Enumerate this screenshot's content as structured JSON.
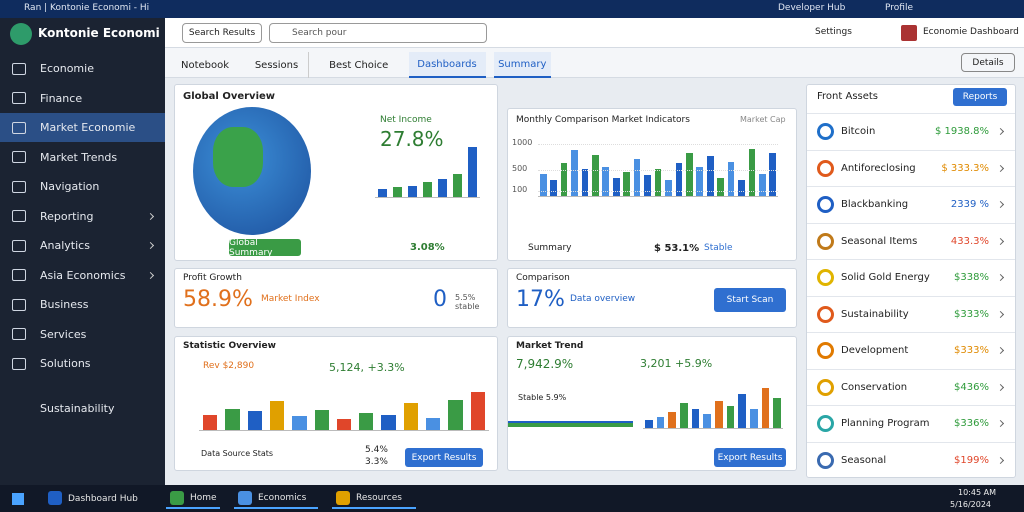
{
  "browser": {
    "tab_title": "Ran | Kontonie Economi - Hi",
    "account": "Developer Hub",
    "profile": "Profile"
  },
  "header": {
    "app_name": "Kontonie Economi",
    "search_button": "Search Results",
    "search_placeholder": "Search pour",
    "shortcut": "Settings",
    "user_name": "Economie Dashboard"
  },
  "sidebar": {
    "items": [
      "Economie",
      "Finance",
      "Market Economie",
      "Market Trends",
      "Navigation",
      "Reporting",
      "Analytics",
      "Asia Economics",
      "Business",
      "Services",
      "Solutions"
    ],
    "active": 2,
    "expandable": [
      5,
      6,
      7
    ],
    "footer": "Sustainability"
  },
  "tabs": {
    "items": [
      "Notebook",
      "Sessions",
      "Best Choice",
      "Dashboards",
      "Summary"
    ],
    "active": [
      3,
      4
    ],
    "details": "Details"
  },
  "globe_panel": {
    "title": "Global Overview",
    "metric_label": "Net Income",
    "metric": "27.8%",
    "ylim": [
      0,
      70
    ],
    "bars": [
      10,
      12,
      14,
      18,
      22,
      28,
      62
    ],
    "button": "Global Summary",
    "footer_value": "3.08%"
  },
  "monthly_panel": {
    "title": "Monthly Comparison Market Indicators",
    "tag": "Market Cap",
    "ylim": [
      0,
      1200
    ],
    "yticks": [
      100,
      500,
      1000
    ],
    "bars": [
      420,
      300,
      620,
      880,
      520,
      780,
      560,
      340,
      460,
      700,
      400,
      520,
      300,
      620,
      820,
      560,
      760,
      340,
      640,
      300,
      900,
      420,
      820
    ],
    "summary": "Summary",
    "summary_value": "$ 53.1%",
    "summary_status": "Stable"
  },
  "profit_panel": {
    "title": "Profit Growth",
    "metric": "58.9%",
    "metric_label": "Market Index",
    "count": "0",
    "count_note": "5.5% stable"
  },
  "comparison_panel": {
    "title": "Comparison",
    "metric": "17%",
    "metric_label": "Data overview",
    "button": "Start Scan"
  },
  "stats_panel": {
    "title": "Statistic Overview",
    "legend": "Rev $2,890",
    "headline": "5,124, +3.3%",
    "ylim": [
      0,
      100
    ],
    "bars": [
      30,
      42,
      38,
      60,
      28,
      40,
      22,
      35,
      30,
      55,
      25,
      62,
      78
    ],
    "footer": "Data Source Stats",
    "values": [
      "5.4%",
      "3.3%"
    ],
    "button": "Export Results"
  },
  "trend_panel": {
    "title": "Market Trend",
    "metric": "7,942.9%",
    "headline": "3,201 +5.9%",
    "legend": "Stable 5.9%",
    "ylim": [
      0,
      100
    ],
    "bars": [
      15,
      20,
      30,
      45,
      35,
      25,
      50,
      40,
      62,
      35,
      72,
      55
    ],
    "button": "Export Results"
  },
  "assets_panel": {
    "title": "Front Assets",
    "button": "Reports",
    "items": [
      {
        "name": "Bitcoin",
        "value": "$ 1938.8%",
        "color": "#2e9b3a",
        "icon": "#1f6fc9"
      },
      {
        "name": "Antiforeclosing",
        "value": "$ 333.3%",
        "color": "#e08a00",
        "icon": "#e05a1c"
      },
      {
        "name": "Blackbanking",
        "value": "2339 %",
        "color": "#1f5fc4",
        "icon": "#1f5fc4"
      },
      {
        "name": "Seasonal Items",
        "value": "433.3%",
        "color": "#e0462a",
        "icon": "#c07a1a"
      },
      {
        "name": "Solid Gold Energy",
        "value": "$338%",
        "color": "#2e9b3a",
        "icon": "#e0b400"
      },
      {
        "name": "Sustainability",
        "value": "$333%",
        "color": "#2e9b3a",
        "icon": "#e05a1c"
      },
      {
        "name": "Development",
        "value": "$333%",
        "color": "#e08a00",
        "icon": "#e07a00"
      },
      {
        "name": "Conservation",
        "value": "$436%",
        "color": "#2e9b3a",
        "icon": "#e0a000"
      },
      {
        "name": "Planning Program",
        "value": "$336%",
        "color": "#2e9b3a",
        "icon": "#2aa6a6"
      },
      {
        "name": "Seasonal",
        "value": "$199%",
        "color": "#e0462a",
        "icon": "#3a6ab0"
      }
    ]
  },
  "taskbar": {
    "apps": [
      "Dashboard Hub",
      "Home",
      "Economics",
      "Resources"
    ],
    "time": "10:45 AM",
    "date": "5/16/2024"
  }
}
